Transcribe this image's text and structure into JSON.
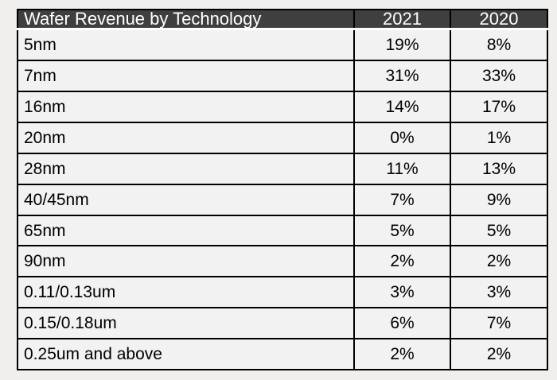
{
  "header": {
    "title": "Wafer Revenue by Technology",
    "col_2021": "2021",
    "col_2020": "2020"
  },
  "rows": [
    {
      "label": "5nm",
      "v2021": "19%",
      "v2020": "8%"
    },
    {
      "label": "7nm",
      "v2021": "31%",
      "v2020": "33%"
    },
    {
      "label": "16nm",
      "v2021": "14%",
      "v2020": "17%"
    },
    {
      "label": "20nm",
      "v2021": "0%",
      "v2020": "1%"
    },
    {
      "label": "28nm",
      "v2021": "11%",
      "v2020": "13%"
    },
    {
      "label": "40/45nm",
      "v2021": "7%",
      "v2020": "9%"
    },
    {
      "label": "65nm",
      "v2021": "5%",
      "v2020": "5%"
    },
    {
      "label": "90nm",
      "v2021": "2%",
      "v2020": "2%"
    },
    {
      "label": "0.11/0.13um",
      "v2021": "3%",
      "v2020": "3%"
    },
    {
      "label": "0.15/0.18um",
      "v2021": "6%",
      "v2020": "7%"
    },
    {
      "label": "0.25um and above",
      "v2021": "2%",
      "v2020": "2%"
    }
  ],
  "colors": {
    "header_bg": "#3f3f3f",
    "header_text": "#ffffff",
    "row_bg": "#f2f2f2",
    "grid_border": "#000000",
    "header_bottom_border": "#ffffff",
    "page_bg": "#f0efed",
    "body_text": "#000000"
  },
  "chart_data": {
    "type": "table",
    "title": "Wafer Revenue by Technology",
    "columns": [
      "Wafer Revenue by Technology",
      "2021",
      "2020"
    ],
    "categories": [
      "5nm",
      "7nm",
      "16nm",
      "20nm",
      "28nm",
      "40/45nm",
      "65nm",
      "90nm",
      "0.11/0.13um",
      "0.15/0.18um",
      "0.25um and above"
    ],
    "series": [
      {
        "name": "2021",
        "values": [
          19,
          31,
          14,
          0,
          11,
          7,
          5,
          2,
          3,
          6,
          2
        ]
      },
      {
        "name": "2020",
        "values": [
          8,
          33,
          17,
          1,
          13,
          9,
          5,
          2,
          3,
          7,
          2
        ]
      }
    ],
    "unit": "%",
    "layout": {
      "header_position": "top",
      "grid": true
    }
  }
}
